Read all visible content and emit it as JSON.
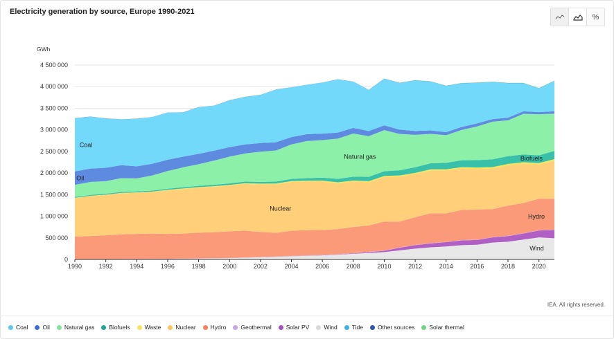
{
  "header": {
    "title": "Electricity generation by source, Europe 1990-2021"
  },
  "toolbar": {
    "buttons": [
      {
        "name": "line-chart-button",
        "icon": "line-chart-icon"
      },
      {
        "name": "area-chart-button",
        "icon": "area-chart-icon"
      },
      {
        "name": "percent-button",
        "icon": "percent-icon",
        "label": "%"
      }
    ]
  },
  "footer": {
    "credit": "IEA. All rights reserved."
  },
  "chart_data": {
    "type": "area",
    "title": "Electricity generation by source, Europe 1990-2021",
    "ylabel": "GWh",
    "xlabel": "",
    "ylim": [
      0,
      4500000
    ],
    "yticks": [
      "0",
      "500 000",
      "1 000 000",
      "1 500 000",
      "2 000 000",
      "2 500 000",
      "3 000 000",
      "3 500 000",
      "4 000 000",
      "4 500 000"
    ],
    "yticks_values": [
      0,
      500000,
      1000000,
      1500000,
      2000000,
      2500000,
      3000000,
      3500000,
      4000000,
      4500000
    ],
    "xticks": [
      "1990",
      "1992",
      "1994",
      "1996",
      "1998",
      "2000",
      "2002",
      "2004",
      "2006",
      "2008",
      "2010",
      "2012",
      "2014",
      "2016",
      "2018",
      "2020"
    ],
    "xticks_values": [
      1990,
      1992,
      1994,
      1996,
      1998,
      2000,
      2002,
      2004,
      2006,
      2008,
      2010,
      2012,
      2014,
      2016,
      2018,
      2020
    ],
    "grid": true,
    "stacked": true,
    "legend_position": "bottom",
    "x": [
      1990,
      1991,
      1992,
      1993,
      1994,
      1995,
      1996,
      1997,
      1998,
      1999,
      2000,
      2001,
      2002,
      2003,
      2004,
      2005,
      2006,
      2007,
      2008,
      2009,
      2010,
      2011,
      2012,
      2013,
      2014,
      2015,
      2016,
      2017,
      2018,
      2019,
      2020,
      2021
    ],
    "series": [
      {
        "name": "Wind",
        "color": "#e8e8e8",
        "label": "Wind",
        "values": [
          2000,
          3000,
          4000,
          5000,
          6000,
          8000,
          10000,
          14000,
          20000,
          25000,
          30000,
          40000,
          50000,
          60000,
          75000,
          85000,
          95000,
          110000,
          130000,
          150000,
          170000,
          210000,
          250000,
          280000,
          300000,
          330000,
          340000,
          390000,
          410000,
          460000,
          510000,
          490000
        ]
      },
      {
        "name": "Solar PV",
        "color": "#b05fc4",
        "values": [
          0,
          0,
          0,
          0,
          0,
          0,
          0,
          0,
          0,
          0,
          0,
          0,
          1000,
          1000,
          2000,
          3000,
          5000,
          6000,
          10000,
          20000,
          30000,
          60000,
          80000,
          90000,
          100000,
          110000,
          110000,
          120000,
          130000,
          140000,
          160000,
          190000
        ]
      },
      {
        "name": "Geothermal",
        "color": "#c8a6e6",
        "values": [
          5000,
          5000,
          5000,
          5000,
          5000,
          5000,
          5000,
          5000,
          5000,
          5000,
          5000,
          6000,
          6000,
          6000,
          6000,
          6000,
          6000,
          6000,
          6000,
          6000,
          6000,
          6000,
          6000,
          6000,
          6000,
          6000,
          6000,
          6000,
          6000,
          6000,
          6000,
          6000
        ]
      },
      {
        "name": "Hydro",
        "color": "#fb9a78",
        "label": "Hydro",
        "values": [
          520000,
          535000,
          550000,
          570000,
          580000,
          585000,
          575000,
          580000,
          595000,
          600000,
          615000,
          620000,
          580000,
          550000,
          580000,
          585000,
          575000,
          580000,
          605000,
          610000,
          670000,
          600000,
          640000,
          690000,
          660000,
          700000,
          700000,
          650000,
          700000,
          700000,
          730000,
          720000
        ]
      },
      {
        "name": "Nuclear",
        "color": "#ffcf7a",
        "label": "Nuclear",
        "values": [
          890000,
          920000,
          930000,
          950000,
          950000,
          960000,
          1010000,
          1030000,
          1040000,
          1050000,
          1060000,
          1080000,
          1100000,
          1120000,
          1130000,
          1120000,
          1120000,
          1060000,
          1050000,
          1000000,
          1030000,
          1040000,
          1000000,
          990000,
          990000,
          960000,
          940000,
          940000,
          930000,
          910000,
          790000,
          880000
        ]
      },
      {
        "name": "Waste",
        "color": "#f6e45a",
        "values": [
          10000,
          10000,
          10000,
          10000,
          10000,
          12000,
          12000,
          14000,
          14000,
          16000,
          16000,
          18000,
          18000,
          20000,
          20000,
          22000,
          22000,
          24000,
          24000,
          26000,
          26000,
          28000,
          28000,
          30000,
          30000,
          30000,
          32000,
          32000,
          34000,
          34000,
          34000,
          36000
        ]
      },
      {
        "name": "Biofuels",
        "color": "#38c0a9",
        "label": "Biofuels",
        "values": [
          20000,
          20000,
          22000,
          22000,
          24000,
          24000,
          26000,
          28000,
          30000,
          32000,
          35000,
          38000,
          40000,
          45000,
          50000,
          60000,
          70000,
          80000,
          90000,
          100000,
          110000,
          120000,
          130000,
          140000,
          150000,
          160000,
          170000,
          180000,
          180000,
          180000,
          180000,
          190000
        ]
      },
      {
        "name": "Natural gas",
        "color": "#8df0a9",
        "label": "Natural gas",
        "values": [
          280000,
          300000,
          290000,
          320000,
          300000,
          350000,
          410000,
          460000,
          500000,
          560000,
          620000,
          650000,
          700000,
          720000,
          800000,
          860000,
          870000,
          930000,
          1000000,
          940000,
          950000,
          840000,
          750000,
          680000,
          640000,
          700000,
          780000,
          870000,
          830000,
          940000,
          950000,
          860000
        ]
      },
      {
        "name": "Oil",
        "color": "#5e8be0",
        "label": "Oil",
        "values": [
          310000,
          310000,
          310000,
          300000,
          280000,
          270000,
          260000,
          250000,
          240000,
          230000,
          220000,
          210000,
          200000,
          190000,
          170000,
          160000,
          150000,
          140000,
          130000,
          120000,
          110000,
          100000,
          90000,
          80000,
          70000,
          70000,
          70000,
          60000,
          60000,
          60000,
          50000,
          60000
        ]
      },
      {
        "name": "Coal",
        "color": "#72d9fa",
        "label": "Coal",
        "values": [
          1230000,
          1200000,
          1140000,
          1060000,
          1100000,
          1080000,
          1090000,
          1020000,
          1080000,
          1040000,
          1080000,
          1100000,
          1110000,
          1220000,
          1150000,
          1140000,
          1180000,
          1230000,
          1070000,
          950000,
          1080000,
          1080000,
          1170000,
          1130000,
          1070000,
          1010000,
          940000,
          860000,
          800000,
          650000,
          550000,
          700000
        ]
      },
      {
        "name": "Tide",
        "color": "#3aa0d8",
        "values": [
          500,
          500,
          500,
          500,
          500,
          500,
          500,
          500,
          500,
          500,
          500,
          500,
          500,
          500,
          500,
          500,
          500,
          500,
          500,
          500,
          500,
          500,
          500,
          500,
          500,
          500,
          500,
          500,
          500,
          500,
          500,
          500
        ]
      },
      {
        "name": "Other sources",
        "color": "#2a64c0",
        "values": [
          3000,
          3000,
          3000,
          3000,
          3000,
          3000,
          3000,
          3000,
          3000,
          3000,
          3000,
          3000,
          3000,
          3000,
          3000,
          3000,
          3000,
          3000,
          3000,
          3000,
          3000,
          3000,
          3000,
          3000,
          3000,
          3000,
          3000,
          3000,
          3000,
          3000,
          3000,
          3000
        ]
      },
      {
        "name": "Solar thermal",
        "color": "#7edf85",
        "values": [
          0,
          0,
          0,
          0,
          0,
          0,
          0,
          0,
          0,
          0,
          0,
          0,
          0,
          0,
          0,
          0,
          0,
          0,
          0,
          0,
          1000,
          2000,
          4000,
          5000,
          5000,
          5000,
          5000,
          5000,
          5000,
          5000,
          5000,
          5000
        ]
      }
    ],
    "legend": [
      {
        "name": "Coal",
        "color": "#5bc8ef"
      },
      {
        "name": "Oil",
        "color": "#3f6ed1"
      },
      {
        "name": "Natural gas",
        "color": "#7fe39b"
      },
      {
        "name": "Biofuels",
        "color": "#1fa58f"
      },
      {
        "name": "Waste",
        "color": "#f6e45a"
      },
      {
        "name": "Nuclear",
        "color": "#ffc25e"
      },
      {
        "name": "Hydro",
        "color": "#fb7f5b"
      },
      {
        "name": "Geothermal",
        "color": "#c8a6e6"
      },
      {
        "name": "Solar PV",
        "color": "#a750c0"
      },
      {
        "name": "Wind",
        "color": "#d9d9d9"
      },
      {
        "name": "Tide",
        "color": "#3fb3e3"
      },
      {
        "name": "Other sources",
        "color": "#2a55b0"
      },
      {
        "name": "Solar thermal",
        "color": "#6fd680"
      }
    ]
  }
}
